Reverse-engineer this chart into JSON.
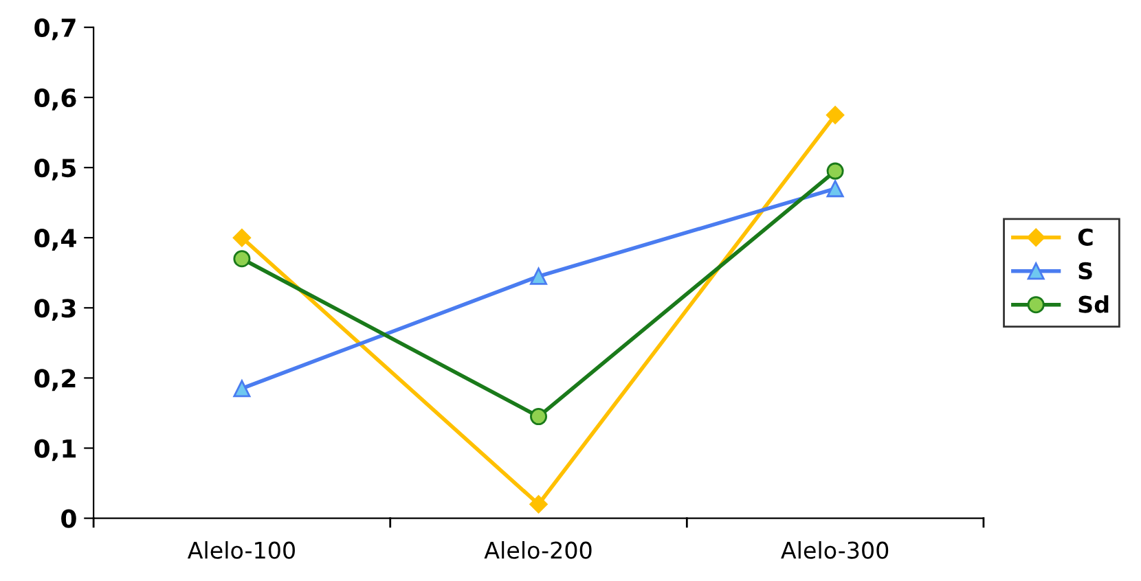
{
  "chart_data": {
    "type": "line",
    "categories": [
      "Alelo-100",
      "Alelo-200",
      "Alelo-300"
    ],
    "series": [
      {
        "name": "C",
        "color": "#ffc000",
        "marker": "diamond",
        "values": [
          0.4,
          0.02,
          0.575
        ]
      },
      {
        "name": "S",
        "color": "#4a7cf0",
        "marker": "triangle",
        "values": [
          0.185,
          0.345,
          0.47
        ]
      },
      {
        "name": "Sd",
        "color": "#1a7a1a",
        "marker": "circle",
        "values": [
          0.37,
          0.145,
          0.495
        ]
      }
    ],
    "ylim": [
      0,
      0.7
    ],
    "yticks": [
      0,
      {
        "value": 0.1,
        "label": "0,1"
      },
      {
        "value": 0.2,
        "label": "0,2"
      },
      {
        "value": 0.3,
        "label": "0,3"
      },
      {
        "value": 0.4,
        "label": "0,4"
      },
      {
        "value": 0.5,
        "label": "0,5"
      },
      {
        "value": 0.6,
        "label": "0,6"
      },
      {
        "value": 0.7,
        "label": "0,7"
      }
    ],
    "grid": false,
    "legend": "right",
    "line_style": "solid"
  }
}
